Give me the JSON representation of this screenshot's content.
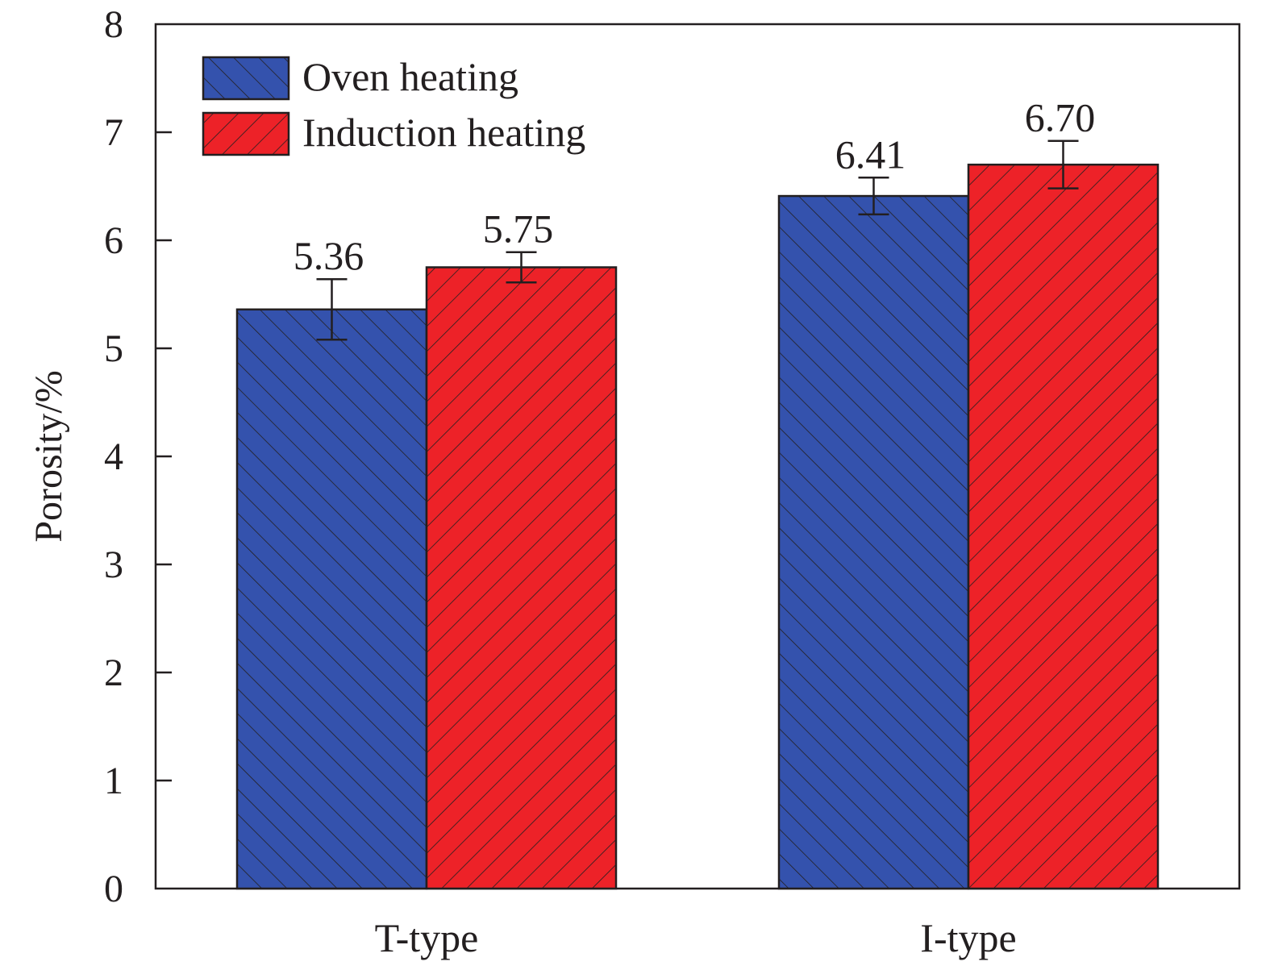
{
  "chart_data": {
    "type": "bar",
    "title": "",
    "xlabel": "",
    "ylabel": "Porosity/%",
    "ylim": [
      0,
      8
    ],
    "yticks": [
      0,
      1,
      2,
      3,
      4,
      5,
      6,
      7,
      8
    ],
    "categories": [
      "T-type",
      "I-type"
    ],
    "legend_position": "top-left",
    "grid": false,
    "series": [
      {
        "name": "Oven heating",
        "color": "#3452ad",
        "hatch": "backslash",
        "values": [
          5.36,
          6.41
        ],
        "value_labels": [
          "5.36",
          "6.41"
        ],
        "error": [
          0.28,
          0.17
        ]
      },
      {
        "name": "Induction heating",
        "color": "#ed2228",
        "hatch": "slash",
        "values": [
          5.75,
          6.7
        ],
        "value_labels": [
          "5.75",
          "6.70"
        ],
        "error": [
          0.14,
          0.22
        ]
      }
    ]
  }
}
